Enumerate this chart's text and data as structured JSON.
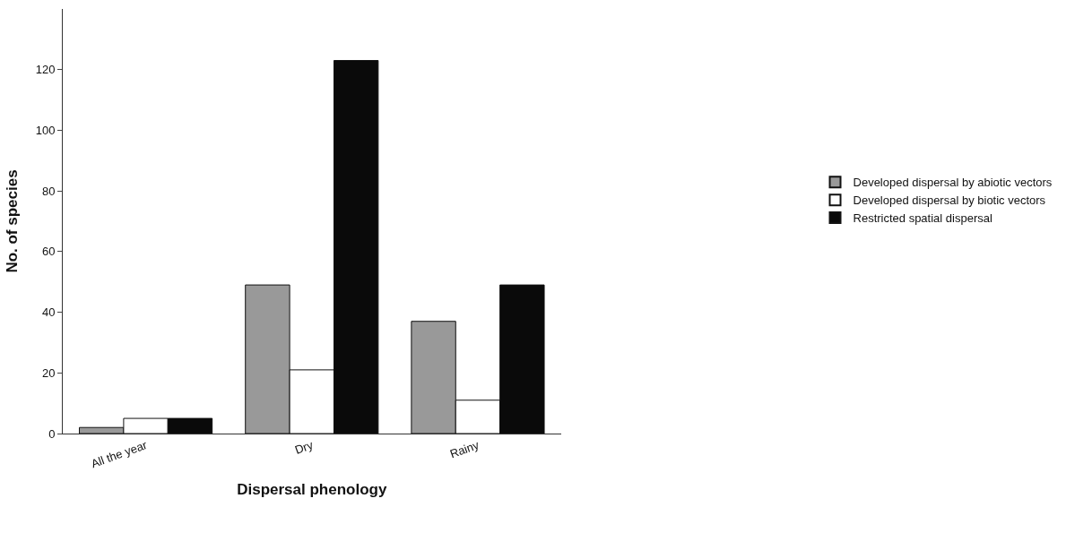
{
  "chart_data": {
    "type": "bar",
    "xlabel": "Dispersal phenology",
    "ylabel": "No. of species",
    "categories": [
      "All the year",
      "Dry",
      "Rainy"
    ],
    "series": [
      {
        "name": "Developed dispersal by abiotic vectors",
        "color": "#999999",
        "values": [
          2,
          49,
          37
        ]
      },
      {
        "name": "Developed dispersal by biotic vectors",
        "color": "#ffffff",
        "values": [
          5,
          21,
          11
        ]
      },
      {
        "name": "Restricted spatial dispersal",
        "color": "#0a0a0a",
        "values": [
          5,
          123,
          49
        ]
      }
    ],
    "ylim": [
      0,
      140
    ],
    "yticks": [
      0,
      20,
      40,
      60,
      80,
      100,
      120
    ],
    "legend": "right"
  }
}
